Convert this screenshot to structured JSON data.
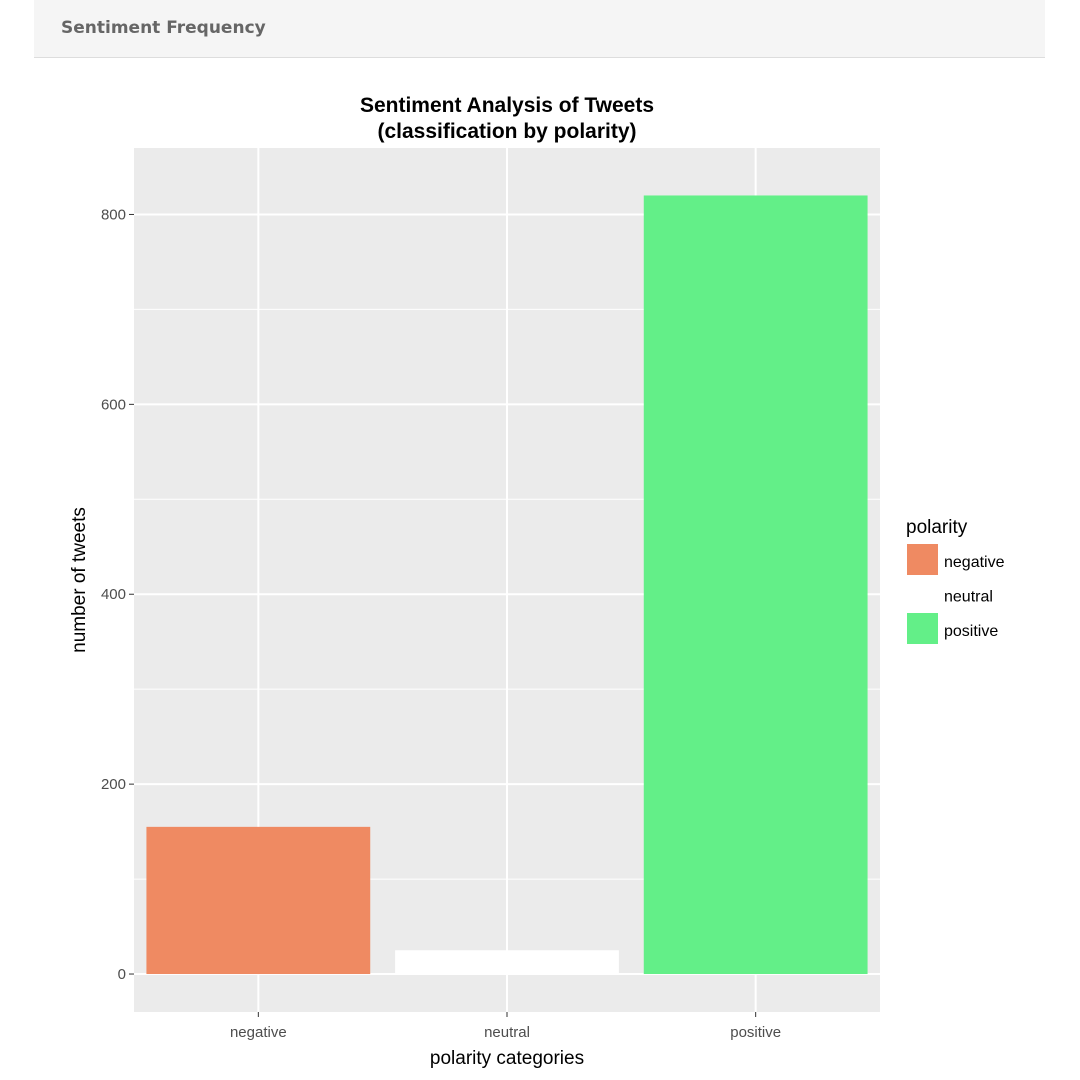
{
  "panel": {
    "title": "Sentiment Frequency"
  },
  "chart_data": {
    "type": "bar",
    "title": "Sentiment Analysis of Tweets",
    "subtitle": "(classification by polarity)",
    "xlabel": "polarity categories",
    "ylabel": "number of tweets",
    "categories": [
      "negative",
      "neutral",
      "positive"
    ],
    "values": [
      155,
      25,
      820
    ],
    "colors": [
      "#ef8a62",
      "#ffffff",
      "#63ef88"
    ],
    "ylim": [
      -40,
      870
    ],
    "yticks": [
      0,
      200,
      400,
      600,
      800
    ],
    "ytick_labels": [
      "0",
      "200",
      "400",
      "600",
      "800"
    ],
    "grid": true,
    "panel_background": "#ebebeb",
    "legend": {
      "title": "polarity",
      "position": "right",
      "entries": [
        "negative",
        "neutral",
        "positive"
      ]
    }
  }
}
